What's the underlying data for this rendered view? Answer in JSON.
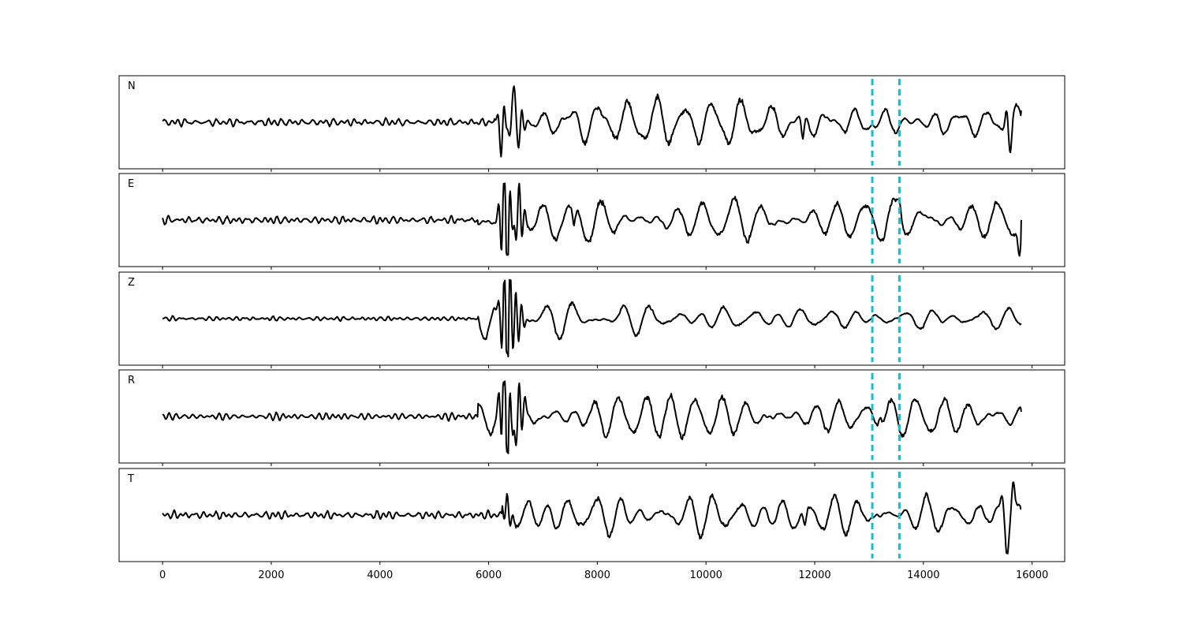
{
  "chart_data": {
    "type": "line",
    "xlim": [
      -800,
      16600
    ],
    "x_ticks": [
      0,
      2000,
      4000,
      6000,
      8000,
      10000,
      12000,
      14000,
      16000
    ],
    "x_tick_labels": [
      "0",
      "2000",
      "4000",
      "6000",
      "8000",
      "10000",
      "12000",
      "14000",
      "16000"
    ],
    "sample_count": 15800,
    "grid": false,
    "vertical_markers": [
      13060,
      13560
    ],
    "marker_color": "#17becf",
    "trace_color": "#000000",
    "panels": [
      {
        "label": "N",
        "ylim": [
          -1.05,
          1.05
        ],
        "noise_amp": 0.11,
        "event_start": 6100,
        "burst_amp": 0.88,
        "coda_amp": 0.46,
        "coda_floor": 0.36,
        "bursts": [
          [
            6280,
            0.9,
            1.0
          ],
          [
            6380,
            0.85,
            -1.0
          ],
          [
            6470,
            0.8,
            1.0
          ],
          [
            6560,
            0.6,
            -1.0
          ]
        ],
        "spikes": [
          [
            11780,
            -0.7
          ],
          [
            15530,
            0.6
          ],
          [
            15600,
            -0.8
          ]
        ],
        "end_value": 0.3
      },
      {
        "label": "E",
        "ylim": [
          -1.05,
          1.05
        ],
        "noise_amp": 0.11,
        "event_start": 5800,
        "burst_amp": 0.92,
        "coda_amp": 0.5,
        "coda_floor": 0.4,
        "bursts": [
          [
            6290,
            0.95,
            1.0
          ],
          [
            6340,
            0.9,
            -1.0
          ],
          [
            6560,
            0.8,
            1.0
          ]
        ],
        "spikes": [
          [
            7570,
            -0.5
          ],
          [
            13560,
            0.35
          ],
          [
            15770,
            -0.75
          ]
        ],
        "end_value": 0.0
      },
      {
        "label": "Z",
        "ylim": [
          -1.05,
          1.05
        ],
        "noise_amp": 0.06,
        "event_start": 5800,
        "burst_amp": 0.88,
        "coda_amp": 0.4,
        "coda_floor": 0.16,
        "bursts": [
          [
            6300,
            0.95,
            1.0
          ],
          [
            6330,
            0.8,
            -1.0
          ],
          [
            6400,
            0.7,
            1.0
          ],
          [
            6550,
            0.55,
            -1.0
          ]
        ],
        "spikes": [],
        "end_value": -0.15
      },
      {
        "label": "R",
        "ylim": [
          -1.05,
          1.05
        ],
        "noise_amp": 0.1,
        "event_start": 5800,
        "burst_amp": 0.92,
        "coda_amp": 0.5,
        "coda_floor": 0.38,
        "bursts": [
          [
            6290,
            0.95,
            1.0
          ],
          [
            6340,
            0.9,
            -1.0
          ],
          [
            6560,
            0.8,
            1.0
          ]
        ],
        "spikes": [
          [
            13200,
            0.3
          ]
        ],
        "end_value": 0.12
      },
      {
        "label": "T",
        "ylim": [
          -1.05,
          1.05
        ],
        "noise_amp": 0.11,
        "event_start": 6250,
        "burst_amp": 0.35,
        "coda_amp": 0.44,
        "coda_floor": 0.32,
        "bursts": [
          [
            6340,
            0.4,
            1.0
          ]
        ],
        "spikes": [
          [
            11820,
            -0.45
          ],
          [
            15450,
            0.45
          ],
          [
            15540,
            -0.85
          ],
          [
            15650,
            0.85
          ]
        ],
        "end_value": 0.15
      }
    ]
  }
}
